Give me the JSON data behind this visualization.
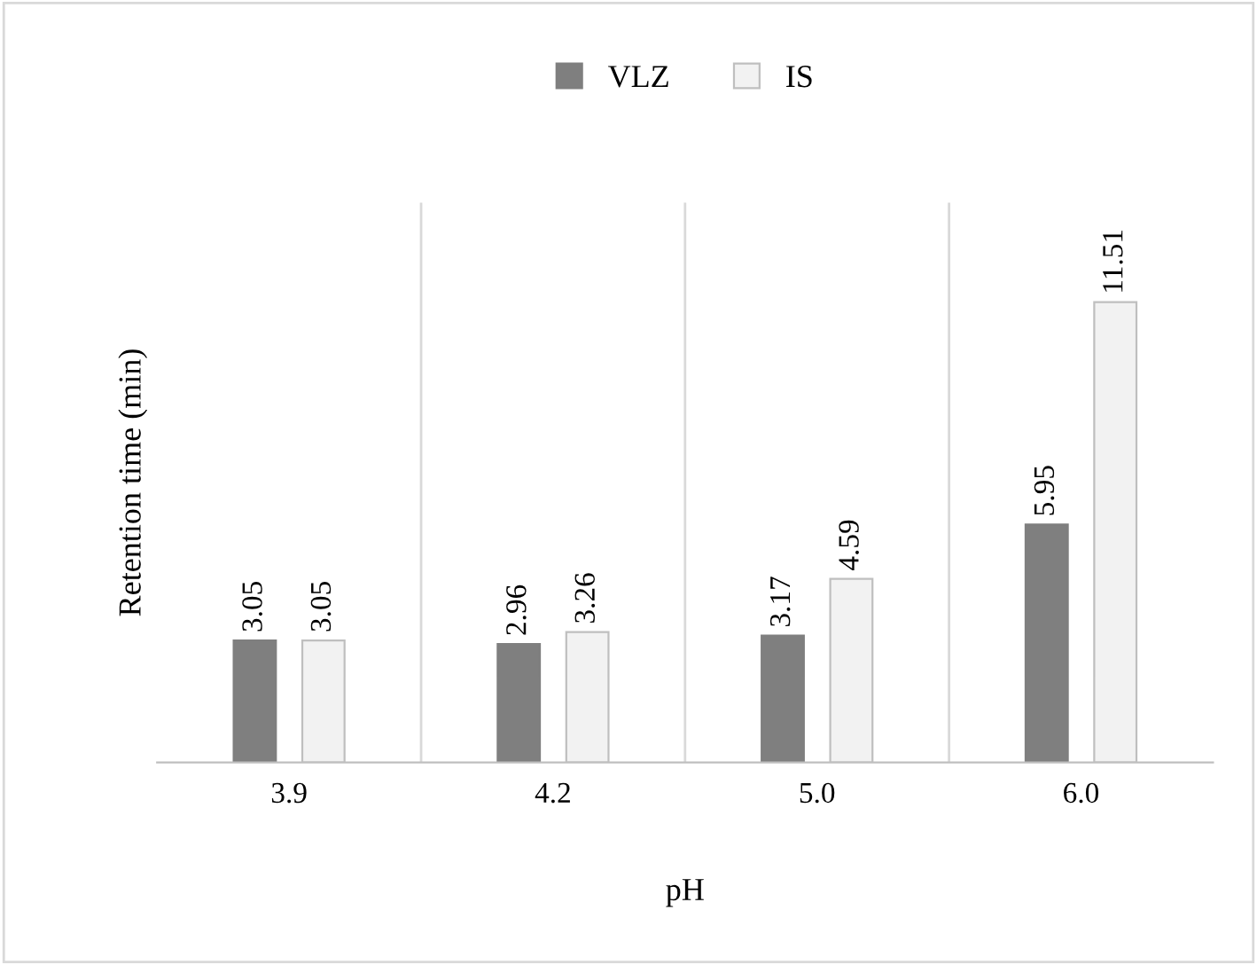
{
  "chart_data": {
    "type": "bar",
    "xlabel": "pH",
    "ylabel": "Retention time (min)",
    "categories": [
      "3.9",
      "4.2",
      "5.0",
      "6.0"
    ],
    "series": [
      {
        "name": "VLZ",
        "color": "#7f7f7f",
        "values": [
          3.05,
          2.96,
          3.17,
          5.95
        ]
      },
      {
        "name": "IS",
        "color": "#f2f2f2",
        "values": [
          3.05,
          3.26,
          4.59,
          11.51
        ]
      }
    ],
    "ylim": [
      0,
      14
    ],
    "data_labels": true,
    "grid": "x",
    "legend": "top"
  }
}
